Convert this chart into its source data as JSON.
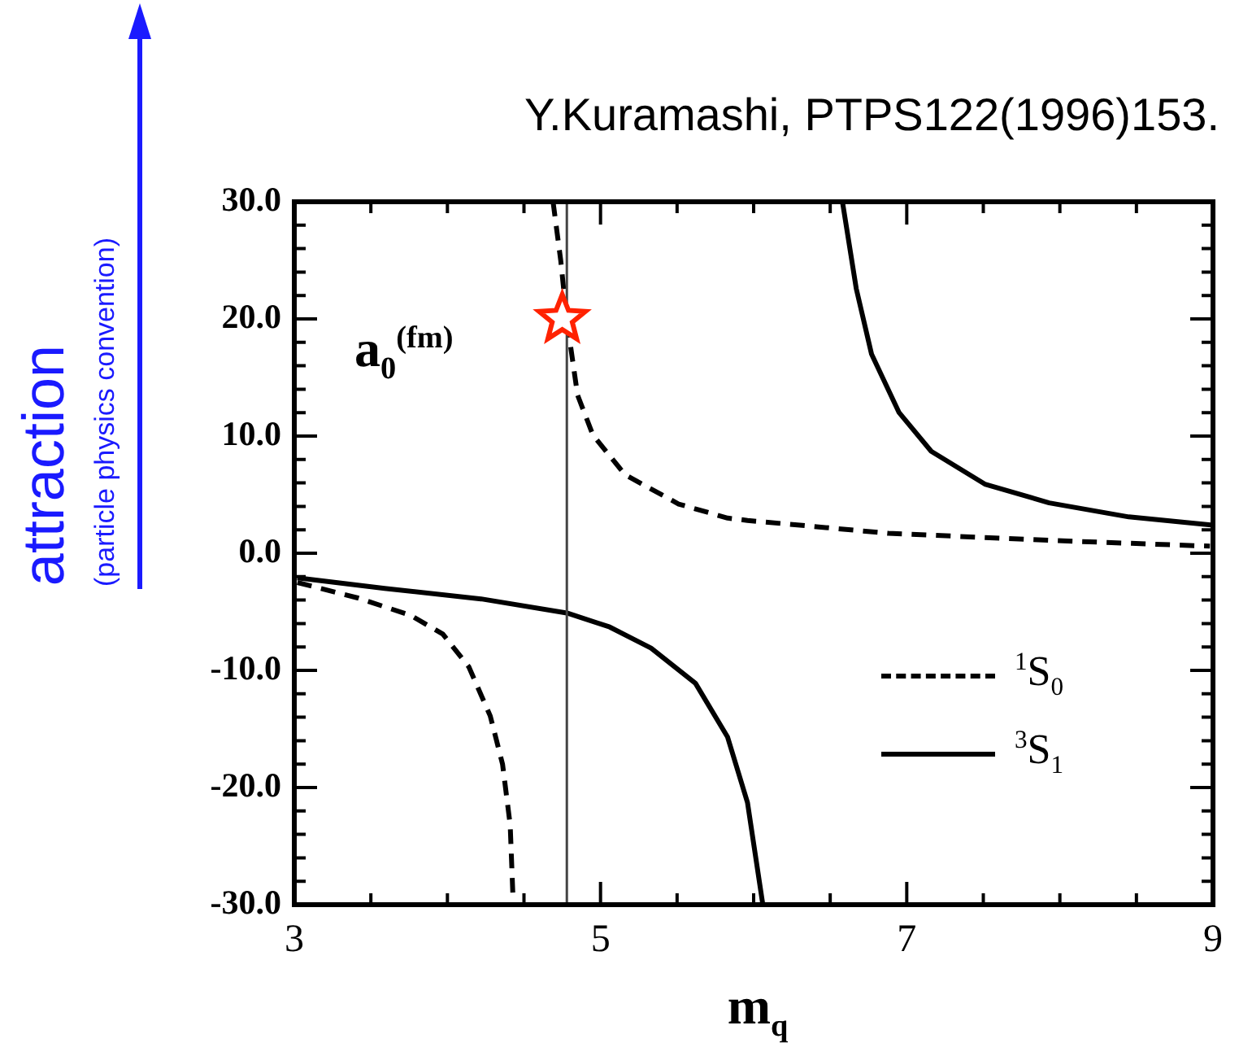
{
  "chart_data": {
    "type": "line",
    "title": "Y.Kuramashi, PTPS122(1996)153.",
    "xlabel": "m$_{q}$",
    "ylabel": "a$_{0}$$^{(fm)}$",
    "annotations": [
      "attraction",
      "(particle physics convention)"
    ],
    "xlim": [
      3,
      9
    ],
    "ylim": [
      -30,
      30
    ],
    "xticks": [
      3,
      {
        "value": 3.5,
        "label": null
      },
      {
        "value": 4,
        "label": null
      },
      {
        "value": 4.5,
        "label": null
      },
      5,
      {
        "value": 5.5,
        "label": null
      },
      {
        "value": 6,
        "label": null
      },
      {
        "value": 6.5,
        "label": null
      },
      7,
      {
        "value": 7.5,
        "label": null
      },
      {
        "value": 8,
        "label": null
      },
      {
        "value": 8.5,
        "label": null
      },
      9
    ],
    "yticks": [
      {
        "value": -30,
        "label": "-30.0"
      },
      {
        "value": -28,
        "label": null
      },
      {
        "value": -26,
        "label": null
      },
      {
        "value": -24,
        "label": null
      },
      {
        "value": -22,
        "label": null
      },
      {
        "value": -20,
        "label": "-20.0"
      },
      {
        "value": -18,
        "label": null
      },
      {
        "value": -16,
        "label": null
      },
      {
        "value": -14,
        "label": null
      },
      {
        "value": -12,
        "label": null
      },
      {
        "value": -10,
        "label": "-10.0"
      },
      {
        "value": -8,
        "label": null
      },
      {
        "value": -6,
        "label": null
      },
      {
        "value": -4,
        "label": null
      },
      {
        "value": -2,
        "label": null
      },
      {
        "value": 0,
        "label": "0.0"
      },
      {
        "value": 2,
        "label": null
      },
      {
        "value": 4,
        "label": null
      },
      {
        "value": 6,
        "label": null
      },
      {
        "value": 8,
        "label": null
      },
      {
        "value": 10,
        "label": "10.0"
      },
      {
        "value": 12,
        "label": null
      },
      {
        "value": 14,
        "label": null
      },
      {
        "value": 16,
        "label": null
      },
      {
        "value": 18,
        "label": null
      },
      {
        "value": 20,
        "label": "20.0"
      },
      {
        "value": 22,
        "label": null
      },
      {
        "value": 24,
        "label": null
      },
      {
        "value": 26,
        "label": null
      },
      {
        "value": 28,
        "label": null
      },
      {
        "value": 30,
        "label": "30.0"
      }
    ],
    "grid": false,
    "legend": "bottom right",
    "marker": "none",
    "ref_lines": [
      {
        "axis": "x",
        "value": 4.78,
        "color": "#444444",
        "line_style": "solid"
      }
    ],
    "series": [
      {
        "name": "$^{1}$S$_{0}$",
        "color": "#000000",
        "line_style": "dashed",
        "x": [
          3.02,
          3.41,
          3.76,
          3.97,
          4.14,
          4.28,
          4.36,
          4.41,
          4.43,
          4.55,
          4.69,
          4.74,
          4.78,
          4.85,
          4.95,
          5.16,
          5.51,
          5.83,
          5.96,
          6.88,
          7.93,
          8.98
        ],
        "values": [
          -2.5,
          -3.8,
          -5.3,
          -6.9,
          -9.7,
          -13.9,
          -18,
          -23.2,
          -30,
          null,
          30,
          25,
          19.9,
          13.5,
          10.1,
          6.7,
          4.2,
          3.0,
          2.8,
          1.7,
          1.1,
          0.6
        ]
      },
      {
        "name": "$^{3}$S$_{1}$",
        "color": "#000000",
        "line_style": "solid",
        "x": [
          3.02,
          3.59,
          4.22,
          4.78,
          5.06,
          5.33,
          5.62,
          5.83,
          5.96,
          6.06,
          6.3,
          6.58,
          6.67,
          6.77,
          6.95,
          7.16,
          7.51,
          7.93,
          8.45,
          9
        ],
        "values": [
          -2.1,
          -3,
          -3.9,
          -5.1,
          -6.3,
          -8.1,
          -11.1,
          -15.7,
          -21.3,
          -30,
          null,
          30,
          22.6,
          17,
          12,
          8.7,
          5.9,
          4.3,
          3.1,
          2.4
        ]
      },
      {
        "type": "scatter",
        "color": "#ff2200",
        "marker": "star",
        "x": [
          4.75
        ],
        "values": [
          20
        ]
      }
    ]
  }
}
